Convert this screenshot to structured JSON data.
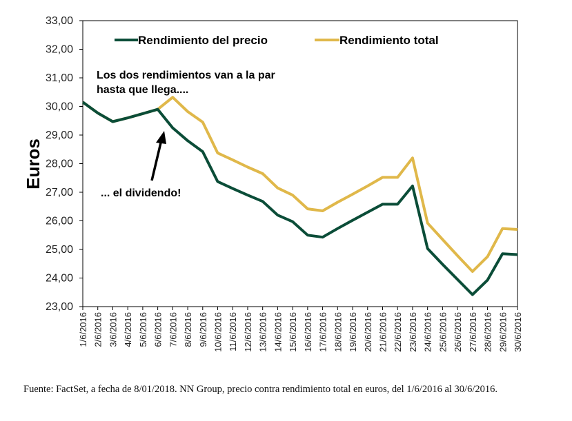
{
  "chart_data": {
    "type": "line",
    "ylabel": "Euros",
    "xlabel": "",
    "ylim": [
      23,
      33
    ],
    "yticks": [
      "23,00",
      "24,00",
      "25,00",
      "26,00",
      "27,00",
      "28,00",
      "29,00",
      "30,00",
      "31,00",
      "32,00",
      "33,00"
    ],
    "categories": [
      "1/6/2016",
      "2/6/2016",
      "3/6/2016",
      "4/6/2016",
      "5/6/2016",
      "6/6/2016",
      "7/6/2016",
      "8/6/2016",
      "9/6/2016",
      "10/6/2016",
      "11/6/2016",
      "12/6/2016",
      "13/6/2016",
      "14/6/2016",
      "15/6/2016",
      "16/6/2016",
      "17/6/2016",
      "18/6/2016",
      "19/6/2016",
      "20/6/2016",
      "21/6/2016",
      "22/6/2016",
      "23/6/2016",
      "24/6/2016",
      "25/6/2016",
      "26/6/2016",
      "27/6/2016",
      "28/6/2016",
      "29/6/2016",
      "30/6/2016"
    ],
    "series": [
      {
        "name": "Rendimiento del precio",
        "color": "#0b4d38",
        "values": [
          30.15,
          29.77,
          29.47,
          29.6,
          29.75,
          29.9,
          29.25,
          28.8,
          28.42,
          27.37,
          27.13,
          26.9,
          26.68,
          26.2,
          25.97,
          25.5,
          25.43,
          25.73,
          26.02,
          26.3,
          26.58,
          26.58,
          27.22,
          25.03,
          24.48,
          23.95,
          23.42,
          23.93,
          24.85,
          24.82
        ]
      },
      {
        "name": "Rendimiento total",
        "color": "#e0b84a",
        "values": [
          30.15,
          29.77,
          29.47,
          29.6,
          29.75,
          29.9,
          30.32,
          29.82,
          29.45,
          28.37,
          28.13,
          27.88,
          27.65,
          27.15,
          26.9,
          26.42,
          26.35,
          26.65,
          26.93,
          27.22,
          27.52,
          27.52,
          28.2,
          25.92,
          25.35,
          24.78,
          24.23,
          24.75,
          25.73,
          25.7
        ]
      }
    ],
    "annotations": [
      {
        "text": "Los dos rendimientos van a la par"
      },
      {
        "text": "hasta que llega...."
      },
      {
        "text": "... el dividendo!"
      }
    ]
  },
  "source": "Fuente: FactSet, a fecha de 8/01/2018. NN Group, precio contra rendimiento total en euros, del 1/6/2016 al 30/6/2016."
}
